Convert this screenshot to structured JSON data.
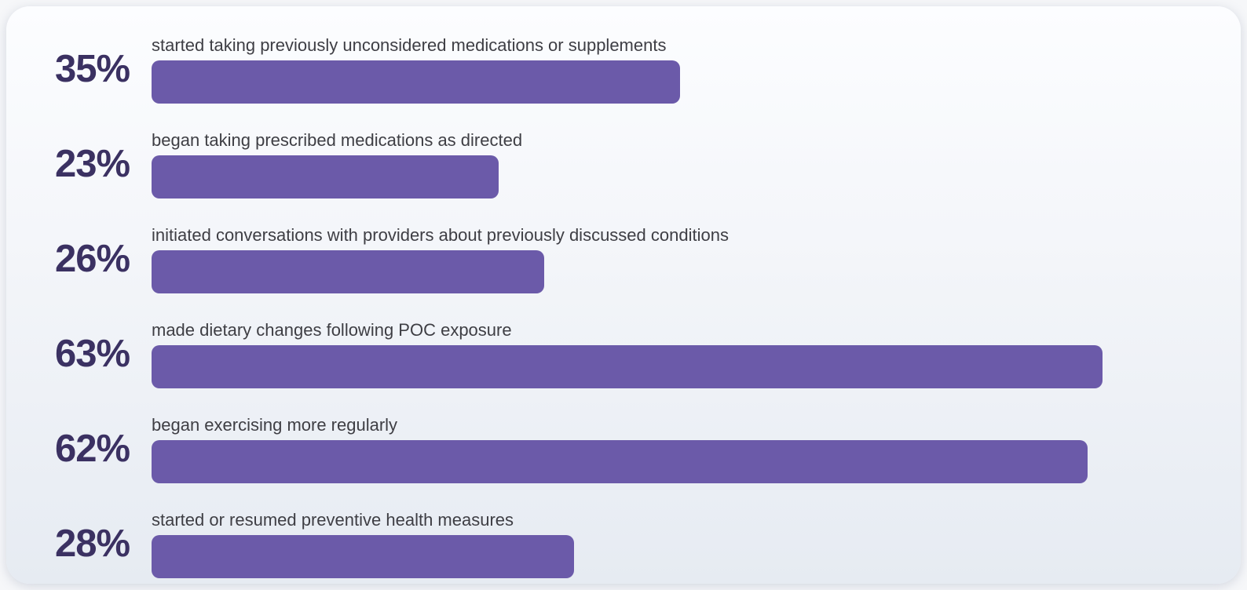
{
  "colors": {
    "bar": "#6B5AA9",
    "percent_text": "#3b3162",
    "label_text": "#3e3e44",
    "card_bg_top": "#fcfdff",
    "card_bg_bottom": "#e6ebf2",
    "page_bg": "#f6f7f9"
  },
  "chart_data": {
    "type": "bar",
    "orientation": "horizontal",
    "title": "",
    "xlabel": "",
    "ylabel": "",
    "xlim": [
      0,
      71
    ],
    "grid": false,
    "legend": false,
    "categories": [
      "started taking previously unconsidered medications or supplements",
      "began taking prescribed medications as directed",
      "initiated conversations with providers about previously discussed conditions",
      "made dietary changes following POC exposure",
      "began exercising more regularly",
      "started or resumed preventive health measures"
    ],
    "values": [
      35,
      23,
      26,
      63,
      62,
      28
    ],
    "value_labels": [
      "35%",
      "23%",
      "26%",
      "63%",
      "62%",
      "28%"
    ]
  }
}
